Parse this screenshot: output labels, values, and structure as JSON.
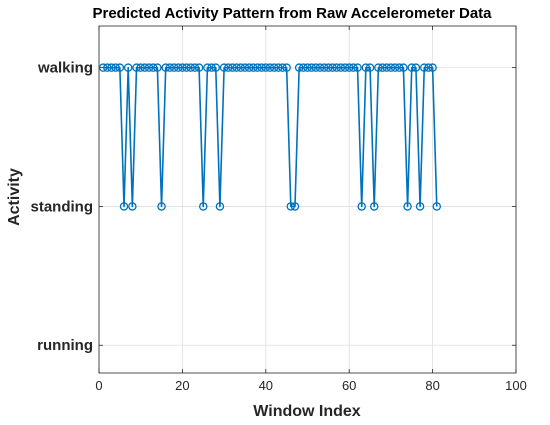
{
  "chart_data": {
    "type": "line",
    "title": "Predicted Activity Pattern from Raw Accelerometer Data",
    "xlabel": "Window Index",
    "ylabel": "Activity",
    "xlim": [
      0,
      100
    ],
    "x_ticks": [
      0,
      20,
      40,
      60,
      80,
      100
    ],
    "categories": [
      "running",
      "standing",
      "walking"
    ],
    "ylim": [
      0.8,
      3.3
    ],
    "grid": true,
    "legend": "none",
    "marker": "circle",
    "line_color": "#0072BD",
    "series": [
      {
        "x": [
          1,
          2,
          3,
          4,
          5,
          6,
          7,
          8,
          9,
          10,
          11,
          12,
          13,
          14,
          15,
          16,
          17,
          18,
          19,
          20,
          21,
          22,
          23,
          24,
          25,
          26,
          27,
          28,
          29,
          30,
          31,
          32,
          33,
          34,
          35,
          36,
          37,
          38,
          39,
          40,
          41,
          42,
          43,
          44,
          45,
          46,
          47,
          48,
          49,
          50,
          51,
          52,
          53,
          54,
          55,
          56,
          57,
          58,
          59,
          60,
          61,
          62,
          63,
          64,
          65,
          66,
          67,
          68,
          69,
          70,
          71,
          72,
          73,
          74,
          75,
          76,
          77,
          78,
          79,
          80,
          81
        ],
        "values": [
          "walking",
          "walking",
          "walking",
          "walking",
          "walking",
          "standing",
          "walking",
          "standing",
          "walking",
          "walking",
          "walking",
          "walking",
          "walking",
          "walking",
          "standing",
          "walking",
          "walking",
          "walking",
          "walking",
          "walking",
          "walking",
          "walking",
          "walking",
          "walking",
          "standing",
          "walking",
          "walking",
          "walking",
          "standing",
          "walking",
          "walking",
          "walking",
          "walking",
          "walking",
          "walking",
          "walking",
          "walking",
          "walking",
          "walking",
          "walking",
          "walking",
          "walking",
          "walking",
          "walking",
          "walking",
          "standing",
          "standing",
          "walking",
          "walking",
          "walking",
          "walking",
          "walking",
          "walking",
          "walking",
          "walking",
          "walking",
          "walking",
          "walking",
          "walking",
          "walking",
          "walking",
          "walking",
          "standing",
          "walking",
          "walking",
          "standing",
          "walking",
          "walking",
          "walking",
          "walking",
          "walking",
          "walking",
          "walking",
          "standing",
          "walking",
          "walking",
          "standing",
          "walking",
          "walking",
          "walking",
          "standing"
        ]
      }
    ]
  }
}
